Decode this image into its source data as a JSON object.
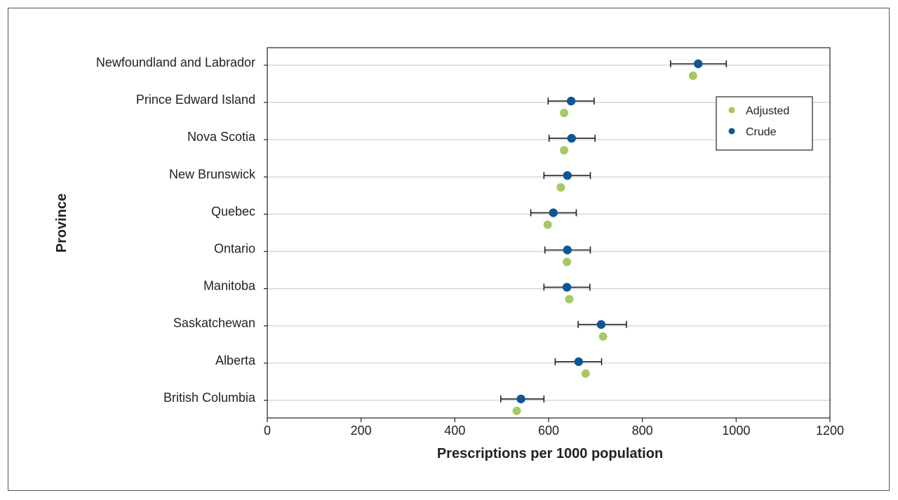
{
  "chart_data": {
    "type": "scatter",
    "xlabel": "Prescriptions per 1000 population",
    "ylabel": "Province",
    "xlim": [
      0,
      1200
    ],
    "xticks": [
      0,
      200,
      400,
      600,
      800,
      1000,
      1200
    ],
    "grid": "horizontal",
    "legend_position": "top-right",
    "categories": [
      "Newfoundland and Labrador",
      "Prince Edward Island",
      "Nova Scotia",
      "New Brunswick",
      "Quebec",
      "Ontario",
      "Manitoba",
      "Saskatchewan",
      "Alberta",
      "British Columbia"
    ],
    "series": [
      {
        "name": "Adjusted",
        "color": "#a6c962",
        "values": [
          908,
          633,
          633,
          626,
          598,
          639,
          644,
          716,
          679,
          532
        ]
      },
      {
        "name": "Crude",
        "color": "#0d5796",
        "values": [
          919,
          648,
          649,
          640,
          610,
          640,
          639,
          712,
          664,
          541
        ],
        "ci_low": [
          860,
          599,
          601,
          590,
          562,
          592,
          590,
          663,
          614,
          498
        ],
        "ci_high": [
          979,
          697,
          699,
          689,
          659,
          689,
          688,
          766,
          713,
          590
        ]
      }
    ]
  }
}
